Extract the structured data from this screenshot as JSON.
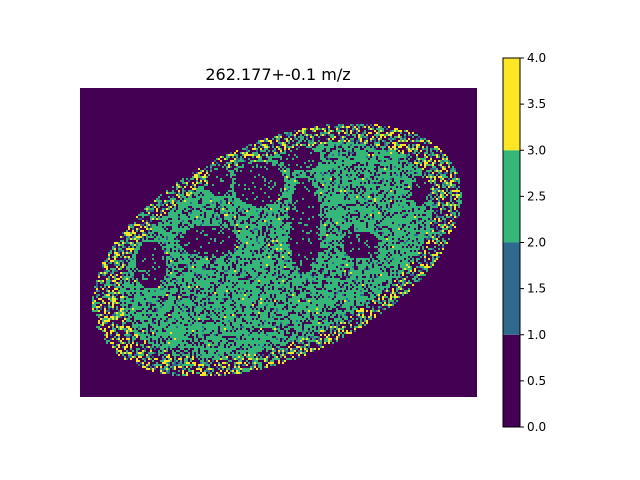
{
  "chart_data": {
    "type": "heatmap",
    "title": "262.177+-0.1 m/z",
    "xlabel": "",
    "ylabel": "",
    "axes_visible": false,
    "grid": false,
    "colorbar": {
      "range": [
        0.0,
        4.0
      ],
      "ticks": [
        "0.0",
        "0.5",
        "1.0",
        "1.5",
        "2.0",
        "2.5",
        "3.0",
        "3.5",
        "4.0"
      ],
      "bins": [
        {
          "range": [
            0,
            1
          ],
          "color": "#440154"
        },
        {
          "range": [
            1,
            2
          ],
          "color": "#31688e"
        },
        {
          "range": [
            2,
            3
          ],
          "color": "#35b779"
        },
        {
          "range": [
            3,
            4
          ],
          "color": "#fde725"
        }
      ]
    },
    "description": "Mass-spectrometry image of an oval tissue section; pixel intensities are discretized into 4 levels. Background is the lowest level; tissue is mostly level 2–3 (green) with scattered level 3–4 (yellow) pixels and sparse level 1–2 (blue) pixels.",
    "level_fractions_in_tissue": {
      "0-1": 0.38,
      "1-2": 0.04,
      "2-3": 0.5,
      "3-4": 0.08
    }
  }
}
